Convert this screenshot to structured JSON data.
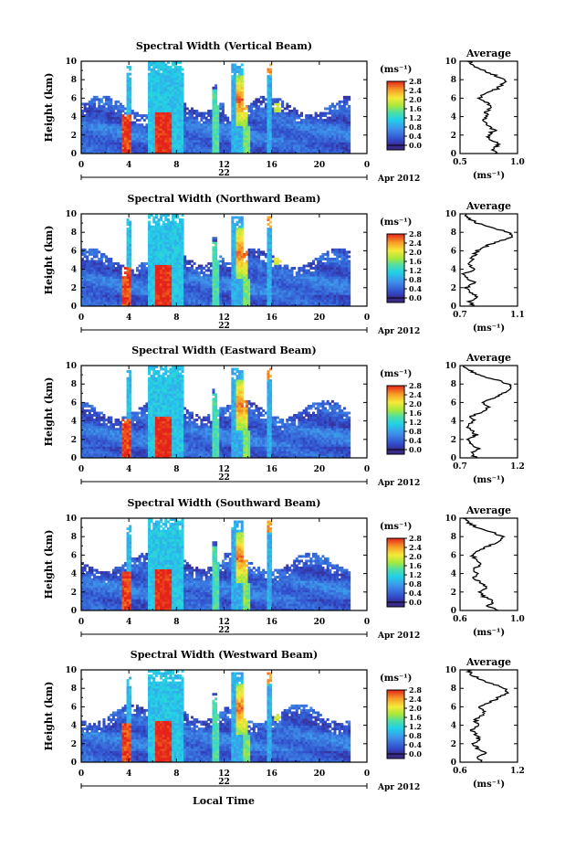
{
  "figure": {
    "ylabel": "Height (km)",
    "xlabel": "Local Time",
    "date_label": "Apr 2012",
    "colorbar_unit": "(ms⁻¹)",
    "avg_title": "Average",
    "avg_xlabel": "(ms⁻¹)"
  },
  "chart_data": [
    {
      "type": "heatmap",
      "title": "Spectral Width (Vertical Beam)",
      "xlabel": "Local Time",
      "ylabel": "Height (km)",
      "xlim": [
        0,
        24
      ],
      "ylim": [
        0,
        10
      ],
      "xticks": [
        "0",
        "4",
        "8",
        "12",
        "16",
        "20",
        "0"
      ],
      "yticks": [
        "0",
        "2",
        "4",
        "6",
        "8",
        "10"
      ],
      "day_label": "22",
      "date_label": "Apr 2012",
      "colorbar": {
        "unit": "(ms⁻¹)",
        "range": [
          0.0,
          2.8
        ],
        "ticks": [
          "0.0",
          "0.4",
          "0.8",
          "1.2",
          "1.6",
          "2.0",
          "2.4",
          "2.8"
        ]
      },
      "average": {
        "title": "Average",
        "xlabel": "(ms⁻¹)",
        "xlim": [
          0.5,
          1.0
        ],
        "xticks": [
          "0.5",
          "1.0"
        ],
        "yticks": [
          "0",
          "2",
          "4",
          "6",
          "8",
          "10"
        ],
        "height": [
          0,
          0.5,
          1,
          1.5,
          2,
          2.5,
          3,
          3.5,
          4,
          4.5,
          5,
          5.5,
          6,
          6.5,
          7,
          7.5,
          8,
          8.5,
          9,
          9.5,
          10
        ],
        "width": [
          0.82,
          0.78,
          0.84,
          0.76,
          0.74,
          0.8,
          0.75,
          0.7,
          0.74,
          0.72,
          0.78,
          0.74,
          0.66,
          0.72,
          0.82,
          0.86,
          0.9,
          0.8,
          0.7,
          0.62,
          0.58
        ]
      }
    },
    {
      "type": "heatmap",
      "title": "Spectral Width (Northward Beam)",
      "xlabel": "Local Time",
      "ylabel": "Height (km)",
      "xlim": [
        0,
        24
      ],
      "ylim": [
        0,
        10
      ],
      "xticks": [
        "0",
        "4",
        "8",
        "12",
        "16",
        "20",
        "0"
      ],
      "yticks": [
        "0",
        "2",
        "4",
        "6",
        "8",
        "10"
      ],
      "day_label": "22",
      "date_label": "Apr 2012",
      "colorbar": {
        "unit": "(ms⁻¹)",
        "range": [
          0.0,
          2.8
        ],
        "ticks": [
          "0.0",
          "0.4",
          "0.8",
          "1.2",
          "1.6",
          "2.0",
          "2.4",
          "2.8"
        ]
      },
      "average": {
        "title": "Average",
        "xlabel": "(ms⁻¹)",
        "xlim": [
          0.7,
          1.1
        ],
        "xticks": [
          "0.7",
          "1.1"
        ],
        "yticks": [
          "0",
          "2",
          "4",
          "6",
          "8",
          "10"
        ],
        "height": [
          0,
          0.5,
          1,
          1.5,
          2,
          2.5,
          3,
          3.5,
          4,
          4.5,
          5,
          5.5,
          6,
          6.5,
          7,
          7.5,
          8,
          8.5,
          9,
          9.5,
          10
        ],
        "width": [
          0.8,
          0.76,
          0.82,
          0.78,
          0.74,
          0.8,
          0.76,
          0.72,
          0.8,
          0.76,
          0.78,
          0.8,
          0.82,
          0.88,
          0.96,
          1.06,
          1.04,
          0.92,
          0.82,
          0.76,
          0.74
        ]
      }
    },
    {
      "type": "heatmap",
      "title": "Spectral Width (Eastward Beam)",
      "xlabel": "Local Time",
      "ylabel": "Height (km)",
      "xlim": [
        0,
        24
      ],
      "ylim": [
        0,
        10
      ],
      "xticks": [
        "0",
        "4",
        "8",
        "12",
        "16",
        "20",
        "0"
      ],
      "yticks": [
        "0",
        "2",
        "4",
        "6",
        "8",
        "10"
      ],
      "day_label": "22",
      "date_label": "Apr 2012",
      "colorbar": {
        "unit": "(ms⁻¹)",
        "range": [
          0.0,
          2.8
        ],
        "ticks": [
          "0.0",
          "0.4",
          "0.8",
          "1.2",
          "1.6",
          "2.0",
          "2.4",
          "2.8"
        ]
      },
      "average": {
        "title": "Average",
        "xlabel": "(ms⁻¹)",
        "xlim": [
          0.7,
          1.2
        ],
        "xticks": [
          "0.7",
          "1.2"
        ],
        "yticks": [
          "0",
          "2",
          "4",
          "6",
          "8",
          "10"
        ],
        "height": [
          0,
          0.5,
          1,
          1.5,
          2,
          2.5,
          3,
          3.5,
          4,
          4.5,
          5,
          5.5,
          6,
          6.5,
          7,
          7.5,
          8,
          8.5,
          9,
          9.5,
          10
        ],
        "width": [
          0.84,
          0.8,
          0.86,
          0.8,
          0.78,
          0.84,
          0.8,
          0.76,
          0.82,
          0.8,
          0.9,
          0.94,
          0.88,
          1.0,
          1.08,
          1.16,
          1.12,
          1.0,
          0.86,
          0.78,
          0.74
        ]
      }
    },
    {
      "type": "heatmap",
      "title": "Spectral Width (Southward Beam)",
      "xlabel": "Local Time",
      "ylabel": "Height (km)",
      "xlim": [
        0,
        24
      ],
      "ylim": [
        0,
        10
      ],
      "xticks": [
        "0",
        "4",
        "8",
        "12",
        "16",
        "20",
        "0"
      ],
      "yticks": [
        "0",
        "2",
        "4",
        "6",
        "8",
        "10"
      ],
      "day_label": "22",
      "date_label": "Apr 2012",
      "colorbar": {
        "unit": "(ms⁻¹)",
        "range": [
          0.0,
          2.8
        ],
        "ticks": [
          "0.0",
          "0.4",
          "0.8",
          "1.2",
          "1.6",
          "2.0",
          "2.4",
          "2.8"
        ]
      },
      "average": {
        "title": "Average",
        "xlabel": "(ms⁻¹)",
        "xlim": [
          0.6,
          1.0
        ],
        "xticks": [
          "0.6",
          "1.0"
        ],
        "yticks": [
          "0",
          "2",
          "4",
          "6",
          "8",
          "10"
        ],
        "height": [
          0,
          0.5,
          1,
          1.5,
          2,
          2.5,
          3,
          3.5,
          4,
          4.5,
          5,
          5.5,
          6,
          6.5,
          7,
          7.5,
          8,
          8.5,
          9,
          9.5,
          10
        ],
        "width": [
          0.86,
          0.8,
          0.84,
          0.76,
          0.74,
          0.78,
          0.74,
          0.7,
          0.72,
          0.7,
          0.74,
          0.72,
          0.68,
          0.74,
          0.8,
          0.86,
          0.9,
          0.82,
          0.72,
          0.66,
          0.62
        ]
      }
    },
    {
      "type": "heatmap",
      "title": "Spectral Width (Westward Beam)",
      "xlabel": "Local Time",
      "ylabel": "Height (km)",
      "xlim": [
        0,
        24
      ],
      "ylim": [
        0,
        10
      ],
      "xticks": [
        "0",
        "4",
        "8",
        "12",
        "16",
        "20",
        "0"
      ],
      "yticks": [
        "0",
        "2",
        "4",
        "6",
        "8",
        "10"
      ],
      "day_label": "22",
      "date_label": "Apr 2012",
      "colorbar": {
        "unit": "(ms⁻¹)",
        "range": [
          0.0,
          2.8
        ],
        "ticks": [
          "0.0",
          "0.4",
          "0.8",
          "1.2",
          "1.6",
          "2.0",
          "2.4",
          "2.8"
        ]
      },
      "average": {
        "title": "Average",
        "xlabel": "(ms⁻¹)",
        "xlim": [
          0.6,
          1.2
        ],
        "xticks": [
          "0.6",
          "1.2"
        ],
        "yticks": [
          "0",
          "2",
          "4",
          "6",
          "8",
          "10"
        ],
        "height": [
          0,
          0.5,
          1,
          1.5,
          2,
          2.5,
          3,
          3.5,
          4,
          4.5,
          5,
          5.5,
          6,
          6.5,
          7,
          7.5,
          8,
          8.5,
          9,
          9.5,
          10
        ],
        "width": [
          0.84,
          0.78,
          0.86,
          0.78,
          0.74,
          0.8,
          0.76,
          0.72,
          0.78,
          0.76,
          0.82,
          0.86,
          0.8,
          0.92,
          1.0,
          1.1,
          1.06,
          0.94,
          0.8,
          0.72,
          0.68
        ]
      }
    }
  ]
}
